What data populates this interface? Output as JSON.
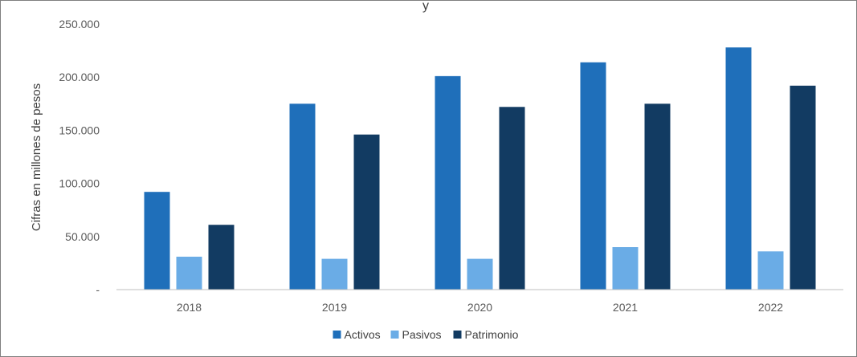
{
  "chart_data": {
    "type": "bar",
    "title_fragment": "y",
    "categories": [
      "2018",
      "2019",
      "2020",
      "2021",
      "2022"
    ],
    "series": [
      {
        "name": "Activos",
        "values": [
          92000,
          175000,
          201000,
          214000,
          228000
        ],
        "color": "#1f6fba"
      },
      {
        "name": "Pasivos",
        "values": [
          31000,
          29000,
          29000,
          40000,
          36000
        ],
        "color": "#6aace6"
      },
      {
        "name": "Patrimonio",
        "values": [
          61000,
          146000,
          172000,
          175000,
          192000
        ],
        "color": "#123b62"
      }
    ],
    "ylabel": "Cifras en millones de pesos",
    "ylim": [
      0,
      250000
    ],
    "y_ticks": [
      0,
      50000,
      100000,
      150000,
      200000,
      250000
    ],
    "y_tick_labels": [
      "-",
      "50.000",
      "100.000",
      "150.000",
      "200.000",
      "250.000"
    ],
    "grid": false,
    "legend_position": "bottom"
  }
}
